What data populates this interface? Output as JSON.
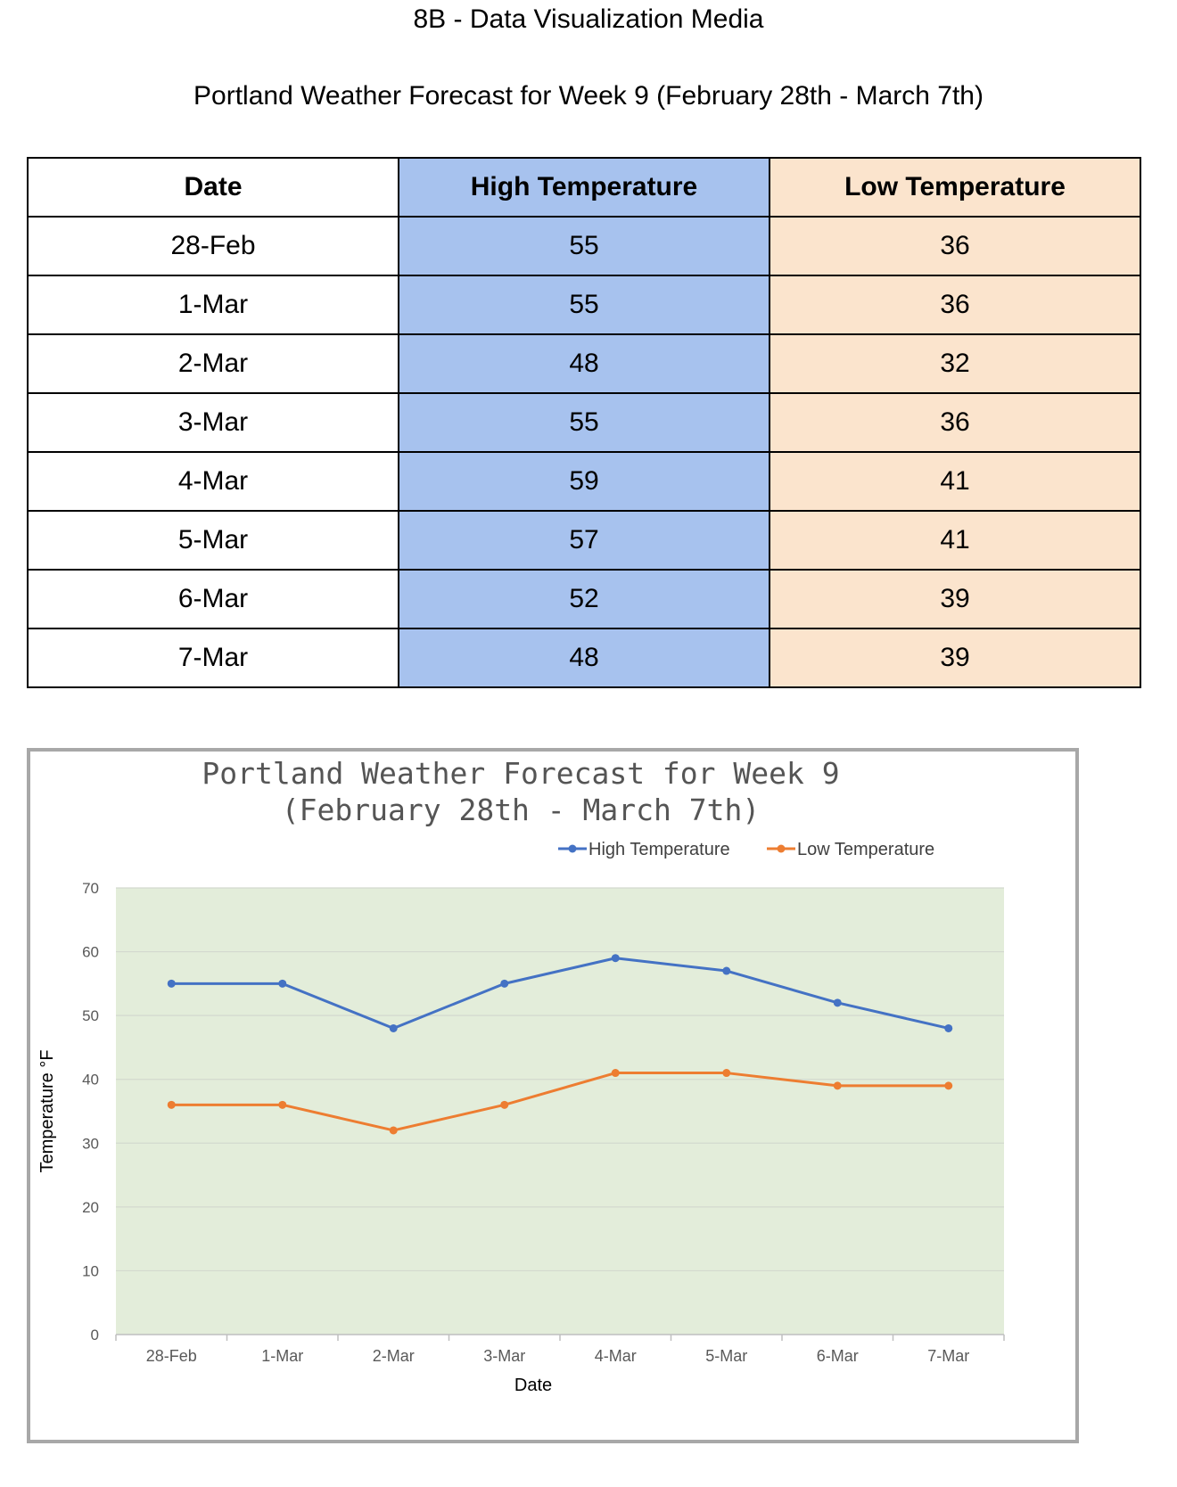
{
  "header": {
    "title": "8B - Data Visualization Media",
    "subtitle": "Portland Weather Forecast for Week 9 (February 28th - March 7th)"
  },
  "table": {
    "columns": [
      "Date",
      "High Temperature",
      "Low Temperature"
    ],
    "rows": [
      {
        "date": "28-Feb",
        "high": "55",
        "low": "36"
      },
      {
        "date": "1-Mar",
        "high": "55",
        "low": "36"
      },
      {
        "date": "2-Mar",
        "high": "48",
        "low": "32"
      },
      {
        "date": "3-Mar",
        "high": "55",
        "low": "36"
      },
      {
        "date": "4-Mar",
        "high": "59",
        "low": "41"
      },
      {
        "date": "5-Mar",
        "high": "57",
        "low": "41"
      },
      {
        "date": "6-Mar",
        "high": "52",
        "low": "39"
      },
      {
        "date": "7-Mar",
        "high": "48",
        "low": "39"
      }
    ],
    "colors": {
      "high_column": "#a7c2ee",
      "low_column": "#fbe4cd",
      "date_column": "#ffffff"
    }
  },
  "chart_data": {
    "type": "line",
    "title_line1": "Portland Weather Forecast for Week 9",
    "title_line2": "(February 28th  - March 7th)",
    "xlabel": "Date",
    "ylabel": "Temperature °F",
    "categories": [
      "28-Feb",
      "1-Mar",
      "2-Mar",
      "3-Mar",
      "4-Mar",
      "5-Mar",
      "6-Mar",
      "7-Mar"
    ],
    "series": [
      {
        "name": "High Temperature",
        "values": [
          55,
          55,
          48,
          55,
          59,
          57,
          52,
          48
        ],
        "color": "#4472c4"
      },
      {
        "name": "Low Temperature",
        "values": [
          36,
          36,
          32,
          36,
          41,
          41,
          39,
          39
        ],
        "color": "#ed7d31"
      }
    ],
    "ylim": [
      0,
      70
    ],
    "yticks": [
      0,
      10,
      20,
      30,
      40,
      50,
      60,
      70
    ],
    "grid": true,
    "legend": "top-right",
    "plot_background": "#e3edda"
  }
}
